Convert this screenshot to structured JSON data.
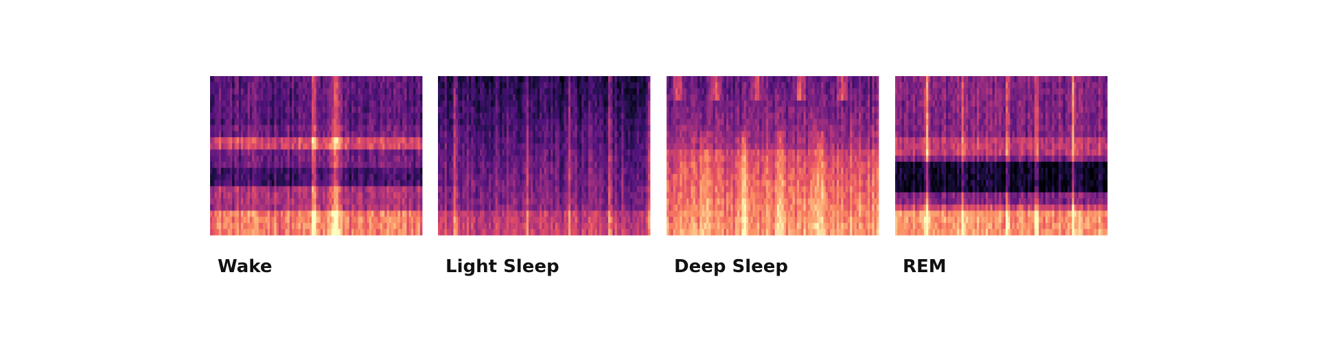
{
  "panels": [
    {
      "label": "Wake"
    },
    {
      "label": "Light Sleep"
    },
    {
      "label": "Deep Sleep"
    },
    {
      "label": "REM"
    }
  ]
}
